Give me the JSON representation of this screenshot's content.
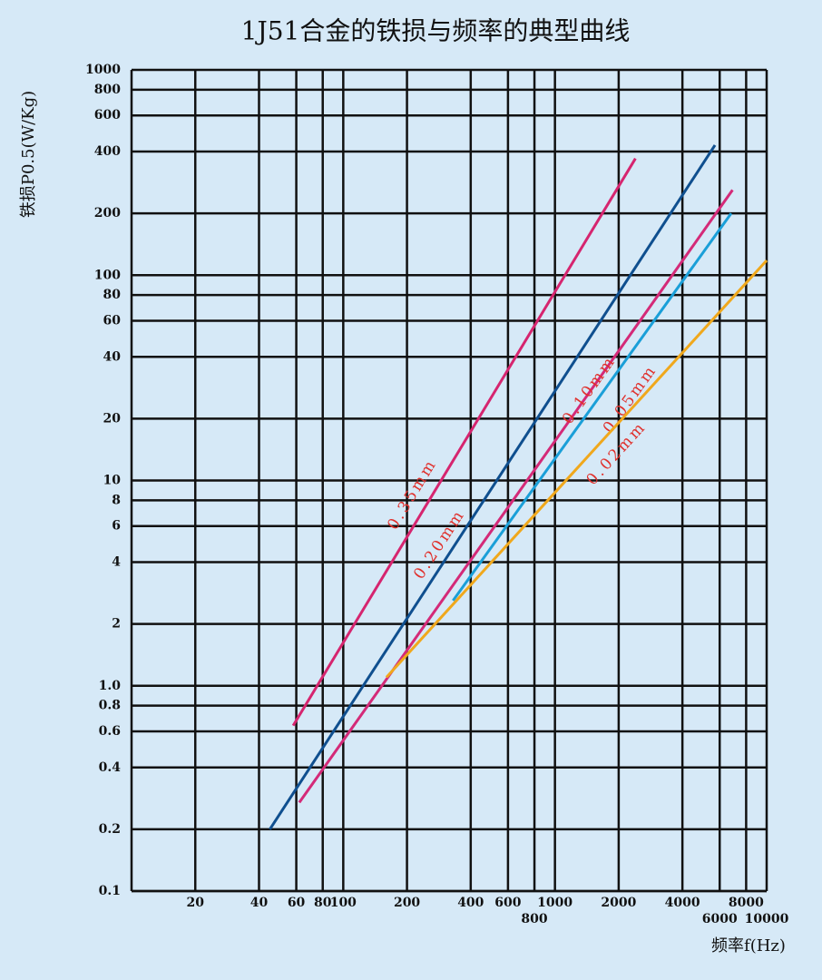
{
  "chart_data": {
    "type": "line",
    "title": "1J51合金的铁损与频率的典型曲线",
    "xlabel": "频率f(Hz)",
    "ylabel": "铁损P0.5(W/Kg)",
    "log_x": true,
    "log_y": true,
    "grid": true,
    "xlim": [
      10,
      10000
    ],
    "ylim": [
      0.1,
      1000
    ],
    "xticks": [
      20,
      40,
      60,
      80,
      100,
      200,
      400,
      600,
      800,
      1000,
      2000,
      4000,
      6000,
      8000,
      10000
    ],
    "yticks": [
      0.1,
      0.2,
      0.4,
      0.6,
      0.8,
      {
        "value": 1,
        "label": "1.0"
      },
      2,
      4,
      6,
      8,
      10,
      20,
      40,
      60,
      80,
      100,
      200,
      400,
      600,
      800,
      1000
    ],
    "series": [
      {
        "name": "0.35mm",
        "color": "#d6256f",
        "x": [
          58,
          2400
        ],
        "values": [
          0.64,
          370
        ]
      },
      {
        "name": "0.20mm",
        "color": "#0f4f8f",
        "x": [
          45,
          5700
        ],
        "values": [
          0.2,
          430
        ]
      },
      {
        "name": "0.10mm",
        "color": "#d42a78",
        "x": [
          62,
          6900
        ],
        "values": [
          0.27,
          260
        ]
      },
      {
        "name": "0.05mm",
        "color": "#1a9fd8",
        "x": [
          330,
          6800
        ],
        "values": [
          2.6,
          200
        ]
      },
      {
        "name": "0.02mm",
        "color": "#f0a81c",
        "x": [
          160,
          10000
        ],
        "values": [
          1.1,
          118
        ]
      }
    ]
  }
}
